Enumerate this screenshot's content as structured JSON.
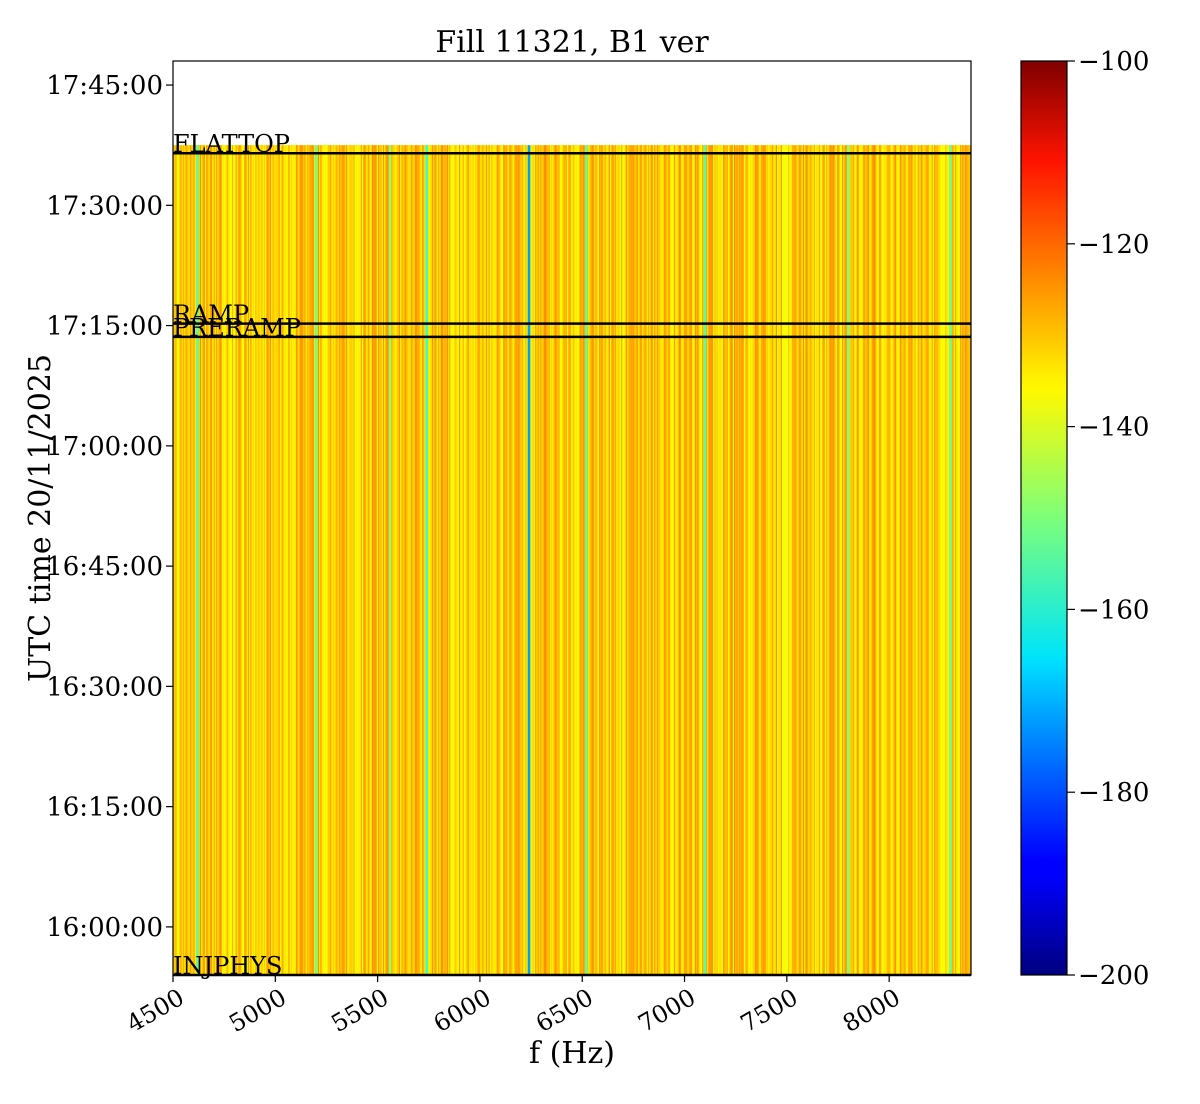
{
  "chart_data": {
    "type": "heatmap",
    "title": "Fill 11321, B1 ver",
    "xlabel": "f (Hz)",
    "ylabel": "UTC time 20/11/2025",
    "xlim": [
      4500,
      8400
    ],
    "ylim": [
      "15:54:00",
      "17:48:00"
    ],
    "data_extent": {
      "t_start": "15:54:00",
      "t_end": "17:37:30"
    },
    "x_ticks": [
      4500,
      5000,
      5500,
      6000,
      6500,
      7000,
      7500,
      8000
    ],
    "x_tick_labels": [
      "4500",
      "5000",
      "5500",
      "6000",
      "6500",
      "7000",
      "7500",
      "8000"
    ],
    "y_ticks": [
      "16:00:00",
      "16:15:00",
      "16:30:00",
      "16:45:00",
      "17:00:00",
      "17:15:00",
      "17:30:00",
      "17:45:00"
    ],
    "y_tick_labels": [
      "16:00:00",
      "16:15:00",
      "16:30:00",
      "16:45:00",
      "17:00:00",
      "17:15:00",
      "17:30:00",
      "17:45:00"
    ],
    "colorbar": {
      "colormap": "jet",
      "range": [
        -200,
        -100
      ],
      "ticks": [
        -100,
        -120,
        -140,
        -160,
        -180,
        -200
      ],
      "tick_labels": [
        "−100",
        "−120",
        "−140",
        "−160",
        "−180",
        "−200"
      ]
    },
    "value_description": "columns mostly between -128 and -140, few cyan lines near -158, strong line near 6240 Hz about -172",
    "notable_lines": [
      {
        "f": 6240,
        "value": -172
      },
      {
        "f": 5740,
        "value": -157
      },
      {
        "f": 4620,
        "value": -154
      },
      {
        "f": 5200,
        "value": -152
      },
      {
        "f": 5560,
        "value": -148
      },
      {
        "f": 6520,
        "value": -153
      },
      {
        "f": 7100,
        "value": -154
      },
      {
        "f": 7800,
        "value": -150
      },
      {
        "f": 8300,
        "value": -152
      }
    ],
    "annotations": [
      {
        "label": "FLATTOP",
        "time": "17:36:30"
      },
      {
        "label": "RAMP",
        "time": "17:15:15"
      },
      {
        "label": "PRERAMP",
        "time": "17:13:35"
      },
      {
        "label": "INJPHYS",
        "time": "15:54:00"
      }
    ]
  }
}
